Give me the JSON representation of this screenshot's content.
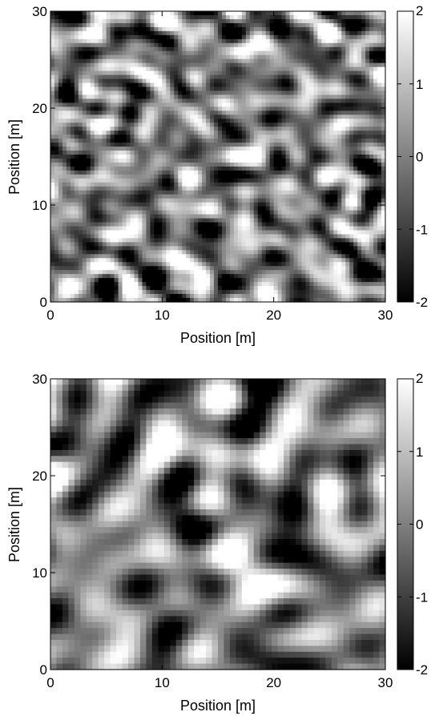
{
  "chart_data": [
    {
      "type": "heatmap",
      "title": "",
      "xlabel": "Position [m]",
      "ylabel": "Position [m]",
      "xlim": [
        0,
        30
      ],
      "ylim": [
        0,
        30
      ],
      "xticks": [
        "0",
        "10",
        "20",
        "30"
      ],
      "yticks": [
        "0",
        "10",
        "20",
        "30"
      ],
      "colorbar": {
        "min": -2,
        "max": 2,
        "ticks": [
          "2",
          "1",
          "0",
          "-1",
          "-2"
        ],
        "colormap": "gray"
      },
      "texture": "fine-grained random field (short correlation length)"
    },
    {
      "type": "heatmap",
      "title": "",
      "xlabel": "Position [m]",
      "ylabel": "Position [m]",
      "xlim": [
        0,
        30
      ],
      "ylim": [
        0,
        30
      ],
      "xticks": [
        "0",
        "10",
        "20",
        "30"
      ],
      "yticks": [
        "0",
        "10",
        "20",
        "30"
      ],
      "colorbar": {
        "min": -2,
        "max": 2,
        "ticks": [
          "2",
          "1",
          "0",
          "-1",
          "-2"
        ],
        "colormap": "gray"
      },
      "texture": "smoother random field (longer correlation length)"
    }
  ],
  "colors": {
    "colormap_low": "#000000",
    "colormap_high": "#ffffff",
    "axes": "#000000"
  }
}
